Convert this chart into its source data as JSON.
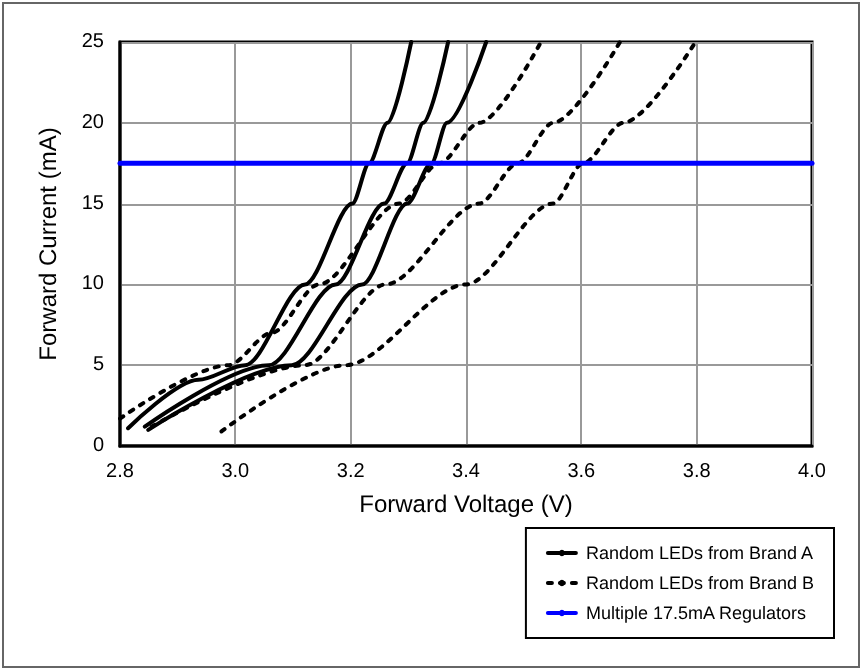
{
  "chart_data": {
    "type": "line",
    "xlabel": "Forward Voltage (V)",
    "ylabel": "Forward Current (mA)",
    "xlim": [
      2.8,
      4.0
    ],
    "ylim": [
      0,
      25
    ],
    "xticks": [
      {
        "value": 2.8,
        "label": "2.8"
      },
      {
        "value": 3.0,
        "label": "3.0"
      },
      {
        "value": 3.2,
        "label": "3.2"
      },
      {
        "value": 3.4,
        "label": "3.4"
      },
      {
        "value": 3.6,
        "label": "3.6"
      },
      {
        "value": 3.8,
        "label": "3.8"
      },
      {
        "value": 4.0,
        "label": "4.0"
      }
    ],
    "yticks": [
      0,
      5,
      10,
      15,
      20,
      25
    ],
    "grid": true,
    "legend": "bottom right",
    "marker": "none",
    "series": [
      {
        "name": "Random LEDs from Brand A",
        "color": "#000000",
        "line_style": "solid",
        "x": [
          2.814,
          2.936,
          3.017,
          3.121,
          3.203,
          3.232,
          3.264,
          3.305
        ],
        "values": [
          1.1,
          4.1,
          5,
          10,
          15,
          17.5,
          20,
          25
        ]
      },
      {
        "color": "#000000",
        "line_style": "solid",
        "x": [
          2.843,
          3.058,
          3.174,
          3.258,
          3.298,
          3.326,
          3.369
        ],
        "values": [
          1.2,
          5,
          10,
          15,
          17.5,
          20,
          25
        ]
      },
      {
        "color": "#000000",
        "line_style": "solid",
        "x": [
          2.849,
          3.098,
          3.22,
          3.298,
          3.34,
          3.367,
          3.435
        ],
        "values": [
          1.0,
          5,
          10,
          15,
          17.5,
          20,
          25
        ]
      },
      {
        "name": "Random LEDs from Brand B",
        "color": "#000000",
        "line_style": "dotted",
        "x": [
          2.8,
          2.988,
          3.063,
          3.145,
          3.284,
          3.354,
          3.423,
          3.53
        ],
        "values": [
          1.7,
          5,
          7,
          10,
          15,
          17.5,
          20,
          25
        ]
      },
      {
        "color": "#000000",
        "line_style": "dotted",
        "x": [
          2.855,
          3.121,
          3.261,
          3.423,
          3.49,
          3.551,
          3.667
        ],
        "values": [
          1.2,
          5,
          10,
          15,
          17.5,
          20,
          25
        ]
      },
      {
        "color": "#000000",
        "line_style": "dotted",
        "x": [
          2.976,
          3.191,
          3.4,
          3.551,
          3.603,
          3.673,
          3.798
        ],
        "values": [
          0.9,
          5,
          10,
          15,
          17.5,
          20,
          25
        ]
      },
      {
        "name": "Multiple 17.5mA Regulators",
        "color": "#0000ff",
        "line_style": "solid",
        "x": [
          2.8,
          4.0
        ],
        "values": [
          17.5,
          17.5
        ]
      }
    ]
  }
}
